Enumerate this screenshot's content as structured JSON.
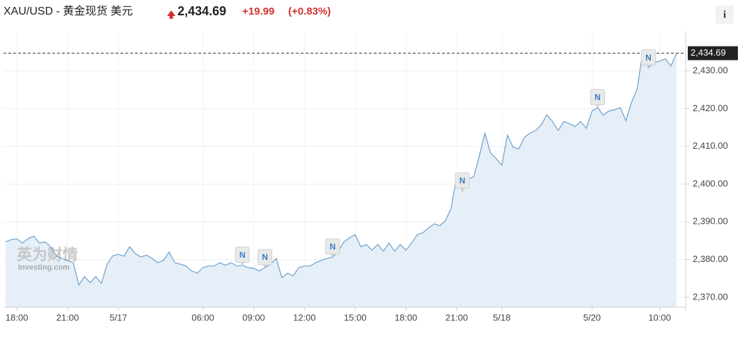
{
  "header": {
    "symbol": "XAU/USD - 黄金现货 美元",
    "price": "2,434.69",
    "change": "+19.99",
    "change_pct": "(+0.83%)",
    "info": "i"
  },
  "chart_data": {
    "type": "area",
    "watermark": {
      "brand": "英为财情",
      "site": "Investing.com"
    },
    "color": "#6a9fcf",
    "fill": "#e6eef7",
    "grid": true,
    "ylim": [
      2367.4,
      2440.5
    ],
    "yticks": [
      {
        "value": 2370,
        "label": "2,370.00"
      },
      {
        "value": 2380,
        "label": "2,380.00"
      },
      {
        "value": 2390,
        "label": "2,390.00"
      },
      {
        "value": 2400,
        "label": "2,400.00"
      },
      {
        "value": 2410,
        "label": "2,410.00"
      },
      {
        "value": 2420,
        "label": "2,420.00"
      },
      {
        "value": 2430,
        "label": "2,430.00"
      }
    ],
    "current_price": {
      "value": 2434.69,
      "label": "2,434.69"
    },
    "annotations": [
      "N",
      "N",
      "N",
      "N",
      "N",
      "N"
    ],
    "categories": [
      null,
      null,
      "18:00",
      null,
      null,
      null,
      null,
      null,
      null,
      null,
      null,
      "21:00",
      null,
      null,
      null,
      null,
      null,
      null,
      null,
      null,
      "5/17",
      null,
      null,
      null,
      null,
      null,
      null,
      null,
      null,
      null,
      null,
      null,
      null,
      null,
      null,
      "06:00",
      null,
      null,
      null,
      null,
      null,
      null,
      null,
      null,
      "09:00",
      null,
      null,
      null,
      null,
      null,
      null,
      null,
      null,
      "12:00",
      null,
      null,
      null,
      null,
      null,
      null,
      null,
      null,
      "15:00",
      null,
      null,
      null,
      null,
      null,
      null,
      null,
      null,
      "18:00",
      null,
      null,
      null,
      null,
      null,
      null,
      null,
      null,
      "21:00",
      null,
      null,
      null,
      null,
      null,
      null,
      null,
      "5/18",
      null,
      null,
      null,
      null,
      null,
      null,
      null,
      null,
      null,
      null,
      null,
      null,
      null,
      null,
      null,
      "5/20",
      null,
      null,
      null,
      null,
      null,
      null,
      null,
      null,
      null,
      null,
      null,
      "10:00",
      null,
      null,
      null
    ],
    "values": [
      2384.7,
      2385.3,
      2385.5,
      2384.4,
      2385.6,
      2386.2,
      2384.4,
      2384.7,
      2383.4,
      2381.0,
      2380.3,
      2379.8,
      2379.2,
      2373.3,
      2375.5,
      2373.9,
      2375.5,
      2373.7,
      2378.8,
      2381.0,
      2381.4,
      2380.9,
      2383.4,
      2381.6,
      2380.7,
      2381.2,
      2380.3,
      2379.2,
      2379.8,
      2382.0,
      2379.2,
      2378.8,
      2378.3,
      2377.0,
      2376.4,
      2377.9,
      2378.3,
      2378.3,
      2379.2,
      2378.5,
      2379.2,
      2378.3,
      2378.5,
      2377.9,
      2377.7,
      2377.0,
      2377.9,
      2378.8,
      2380.3,
      2375.2,
      2376.4,
      2375.7,
      2377.9,
      2378.3,
      2378.3,
      2379.2,
      2379.8,
      2380.3,
      2380.7,
      2382.2,
      2384.7,
      2385.8,
      2386.6,
      2383.4,
      2384.0,
      2382.5,
      2384.0,
      2382.2,
      2384.4,
      2382.2,
      2384.0,
      2382.5,
      2384.4,
      2386.6,
      2387.1,
      2388.4,
      2389.5,
      2389.0,
      2390.3,
      2393.6,
      2401.9,
      2398.2,
      2401.3,
      2401.9,
      2407.4,
      2413.5,
      2408.3,
      2406.8,
      2405.0,
      2413.0,
      2409.8,
      2409.3,
      2412.4,
      2413.5,
      2414.2,
      2415.7,
      2418.4,
      2416.6,
      2414.2,
      2416.6,
      2416.0,
      2415.3,
      2416.6,
      2414.8,
      2419.4,
      2420.3,
      2418.3,
      2419.4,
      2419.7,
      2420.3,
      2416.8,
      2421.6,
      2425.2,
      2435.0,
      2430.8,
      2432.2,
      2432.6,
      2433.2,
      2431.3,
      2434.69
    ]
  }
}
